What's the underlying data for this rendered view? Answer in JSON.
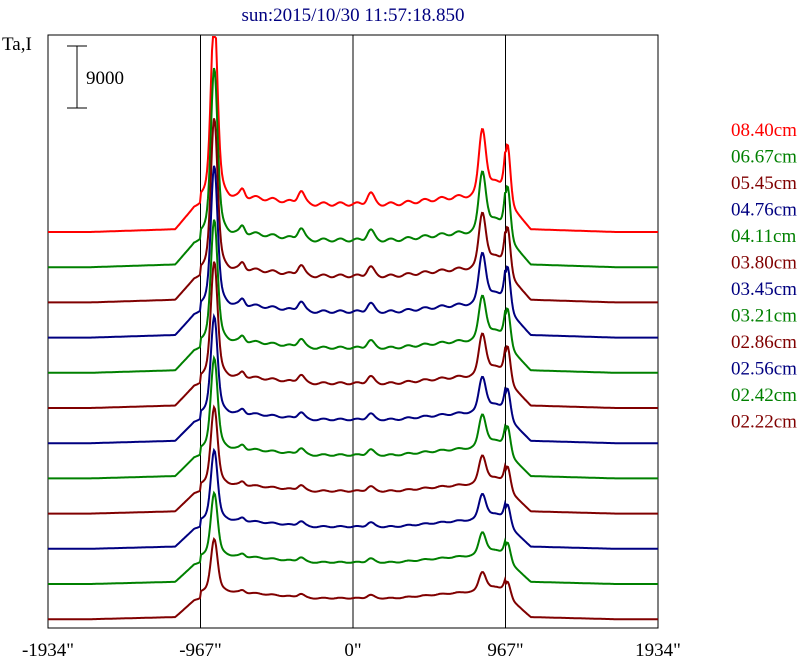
{
  "chart_data": {
    "type": "line",
    "title": "sun:2015/10/30 11:57:18.850",
    "ylabel": "Ta,I",
    "scale_bar_label": "9000",
    "scale_bar_value": 9000,
    "x_ticks": [
      {
        "value": -1934,
        "label": "-1934\""
      },
      {
        "value": -967,
        "label": "-967\""
      },
      {
        "value": 0,
        "label": "0\""
      },
      {
        "value": 967,
        "label": "967\""
      },
      {
        "value": 1934,
        "label": "1934\""
      }
    ],
    "xlim": [
      -1934,
      1934
    ],
    "vertical_lines": [
      -967,
      0,
      967
    ],
    "grid": false,
    "legend_position": "right",
    "series": [
      {
        "name": "08.40cm",
        "color": "#ff0000",
        "peak": 1.0
      },
      {
        "name": "06.67cm",
        "color": "#008000",
        "peak": 0.93
      },
      {
        "name": "05.45cm",
        "color": "#800000",
        "peak": 0.87
      },
      {
        "name": "04.76cm",
        "color": "#000080",
        "peak": 0.82
      },
      {
        "name": "04.11cm",
        "color": "#008000",
        "peak": 0.74
      },
      {
        "name": "03.80cm",
        "color": "#800000",
        "peak": 0.71
      },
      {
        "name": "03.45cm",
        "color": "#000080",
        "peak": 0.62
      },
      {
        "name": "03.21cm",
        "color": "#008000",
        "peak": 0.59
      },
      {
        "name": "02.86cm",
        "color": "#800000",
        "peak": 0.52
      },
      {
        "name": "02.56cm",
        "color": "#000080",
        "peak": 0.48
      },
      {
        "name": "02.42cm",
        "color": "#008000",
        "peak": 0.44
      },
      {
        "name": "02.22cm",
        "color": "#800000",
        "peak": 0.38
      }
    ]
  }
}
